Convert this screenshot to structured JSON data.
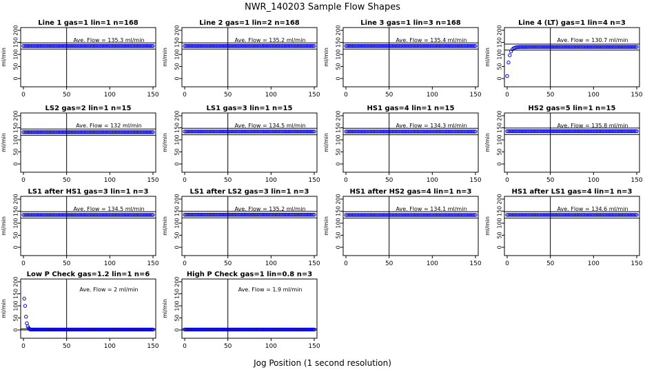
{
  "figure": {
    "title": "NWR_140203  Sample Flow Shapes",
    "xlabel": "Jog Position (1 second resolution)"
  },
  "chart_data": [
    {
      "type": "scatter",
      "title": "Line 1 gas=1 lin=1 n=168",
      "ylabel": "ml/min",
      "xlim": [
        0,
        150
      ],
      "ylim": [
        0,
        200
      ],
      "xticks": [
        0,
        50,
        100,
        150
      ],
      "yticks": [
        0,
        50,
        100,
        150,
        200
      ],
      "vline": 50,
      "hlines": [
        122,
        148
      ],
      "annotation": "Ave. Flow =  135.3  ml/min",
      "series": [
        {
          "shape": "flat",
          "level": 135
        }
      ]
    },
    {
      "type": "scatter",
      "title": "Line 2 gas=1 lin=2 n=168",
      "ylabel": "ml/min",
      "xlim": [
        0,
        150
      ],
      "ylim": [
        0,
        200
      ],
      "xticks": [
        0,
        50,
        100,
        150
      ],
      "yticks": [
        0,
        50,
        100,
        150,
        200
      ],
      "vline": 50,
      "hlines": [
        122,
        148
      ],
      "annotation": "Ave. Flow =  135.2  ml/min",
      "series": [
        {
          "shape": "flat",
          "level": 135
        }
      ]
    },
    {
      "type": "scatter",
      "title": "Line 3 gas=1 lin=3 n=168",
      "ylabel": "ml/min",
      "xlim": [
        0,
        150
      ],
      "ylim": [
        0,
        200
      ],
      "xticks": [
        0,
        50,
        100,
        150
      ],
      "yticks": [
        0,
        50,
        100,
        150,
        200
      ],
      "vline": 50,
      "hlines": [
        122,
        148
      ],
      "annotation": "Ave. Flow =  135.4  ml/min",
      "series": [
        {
          "shape": "flat",
          "level": 135
        }
      ]
    },
    {
      "type": "scatter",
      "title": "Line 4 (LT) gas=1 lin=4 n=3",
      "ylabel": "ml/min",
      "xlim": [
        0,
        150
      ],
      "ylim": [
        0,
        200
      ],
      "xticks": [
        0,
        50,
        100,
        150
      ],
      "yticks": [
        0,
        50,
        100,
        150,
        200
      ],
      "vline": 50,
      "hlines": [
        118,
        143
      ],
      "annotation": "Ave. Flow =  130.7  ml/min",
      "series": [
        {
          "shape": "rise",
          "level": 131
        }
      ]
    },
    {
      "type": "scatter",
      "title": "LS2 gas=2 lin=1 n=15",
      "ylabel": "ml/min",
      "xlim": [
        0,
        150
      ],
      "ylim": [
        0,
        200
      ],
      "xticks": [
        0,
        50,
        100,
        150
      ],
      "yticks": [
        0,
        50,
        100,
        150,
        200
      ],
      "vline": 50,
      "hlines": [
        119,
        145
      ],
      "annotation": "Ave. Flow =  132  ml/min",
      "series": [
        {
          "shape": "flat",
          "level": 132
        }
      ]
    },
    {
      "type": "scatter",
      "title": "LS1 gas=3 lin=1 n=15",
      "ylabel": "ml/min",
      "xlim": [
        0,
        150
      ],
      "ylim": [
        0,
        200
      ],
      "xticks": [
        0,
        50,
        100,
        150
      ],
      "yticks": [
        0,
        50,
        100,
        150,
        200
      ],
      "vline": 50,
      "hlines": [
        121,
        148
      ],
      "annotation": "Ave. Flow =  134.5  ml/min",
      "series": [
        {
          "shape": "flat",
          "level": 134.5
        }
      ]
    },
    {
      "type": "scatter",
      "title": "HS1 gas=4 lin=1 n=15",
      "ylabel": "ml/min",
      "xlim": [
        0,
        150
      ],
      "ylim": [
        0,
        200
      ],
      "xticks": [
        0,
        50,
        100,
        150
      ],
      "yticks": [
        0,
        50,
        100,
        150,
        200
      ],
      "vline": 50,
      "hlines": [
        121,
        148
      ],
      "annotation": "Ave. Flow =  134.3  ml/min",
      "series": [
        {
          "shape": "flat",
          "level": 134.3
        }
      ]
    },
    {
      "type": "scatter",
      "title": "HS2 gas=5 lin=1 n=15",
      "ylabel": "ml/min",
      "xlim": [
        0,
        150
      ],
      "ylim": [
        0,
        200
      ],
      "xticks": [
        0,
        50,
        100,
        150
      ],
      "yticks": [
        0,
        50,
        100,
        150,
        200
      ],
      "vline": 50,
      "hlines": [
        122,
        149
      ],
      "annotation": "Ave. Flow =  135.8  ml/min",
      "series": [
        {
          "shape": "flat",
          "level": 135.8
        }
      ]
    },
    {
      "type": "scatter",
      "title": "LS1 after HS1 gas=3 lin=1 n=3",
      "ylabel": "ml/min",
      "xlim": [
        0,
        150
      ],
      "ylim": [
        0,
        200
      ],
      "xticks": [
        0,
        50,
        100,
        150
      ],
      "yticks": [
        0,
        50,
        100,
        150,
        200
      ],
      "vline": 50,
      "hlines": [
        121,
        148
      ],
      "annotation": "Ave. Flow =  134.5  ml/min",
      "series": [
        {
          "shape": "flat",
          "level": 134.5
        }
      ]
    },
    {
      "type": "scatter",
      "title": "LS1 after LS2 gas=3 lin=1 n=3",
      "ylabel": "ml/min",
      "xlim": [
        0,
        150
      ],
      "ylim": [
        0,
        200
      ],
      "xticks": [
        0,
        50,
        100,
        150
      ],
      "yticks": [
        0,
        50,
        100,
        150,
        200
      ],
      "vline": 50,
      "hlines": [
        122,
        149
      ],
      "annotation": "Ave. Flow =  135.2  ml/min",
      "series": [
        {
          "shape": "flat",
          "level": 135.2
        }
      ]
    },
    {
      "type": "scatter",
      "title": "HS1 after HS2 gas=4 lin=1 n=3",
      "ylabel": "ml/min",
      "xlim": [
        0,
        150
      ],
      "ylim": [
        0,
        200
      ],
      "xticks": [
        0,
        50,
        100,
        150
      ],
      "yticks": [
        0,
        50,
        100,
        150,
        200
      ],
      "vline": 50,
      "hlines": [
        121,
        148
      ],
      "annotation": "Ave. Flow =  134.1  ml/min",
      "series": [
        {
          "shape": "flat",
          "level": 134.1
        }
      ]
    },
    {
      "type": "scatter",
      "title": "HS1 after LS1 gas=4 lin=1 n=3",
      "ylabel": "ml/min",
      "xlim": [
        0,
        150
      ],
      "ylim": [
        0,
        200
      ],
      "xticks": [
        0,
        50,
        100,
        150
      ],
      "yticks": [
        0,
        50,
        100,
        150,
        200
      ],
      "vline": 50,
      "hlines": [
        121,
        148
      ],
      "annotation": "Ave. Flow =  134.6  ml/min",
      "series": [
        {
          "shape": "flat",
          "level": 134.6
        }
      ]
    },
    {
      "type": "scatter",
      "title": "Low P Check gas=1.2 lin=1 n=6",
      "ylabel": "ml/min",
      "xlim": [
        0,
        150
      ],
      "ylim": [
        0,
        200
      ],
      "xticks": [
        0,
        50,
        100,
        150
      ],
      "yticks": [
        0,
        50,
        100,
        150,
        200
      ],
      "vline": 50,
      "hlines": [
        0,
        5
      ],
      "annotation": "Ave. Flow =  2  ml/min",
      "series": [
        {
          "shape": "decay",
          "level": 2,
          "points": [
            [
              1,
              130
            ],
            [
              2,
              100
            ],
            [
              3,
              55
            ],
            [
              4,
              28
            ],
            [
              5,
              15
            ],
            [
              6,
              8
            ],
            [
              7,
              4
            ],
            [
              8,
              2
            ]
          ]
        }
      ]
    },
    {
      "type": "scatter",
      "title": "High P Check gas=1 lin=0.8 n=3",
      "ylabel": "ml/min",
      "xlim": [
        0,
        150
      ],
      "ylim": [
        0,
        200
      ],
      "xticks": [
        0,
        50,
        100,
        150
      ],
      "yticks": [
        0,
        50,
        100,
        150,
        200
      ],
      "vline": 50,
      "hlines": [
        0,
        5
      ],
      "annotation": "Ave. Flow =  1.9  ml/min",
      "series": [
        {
          "shape": "flat",
          "level": 1.9
        }
      ]
    }
  ]
}
